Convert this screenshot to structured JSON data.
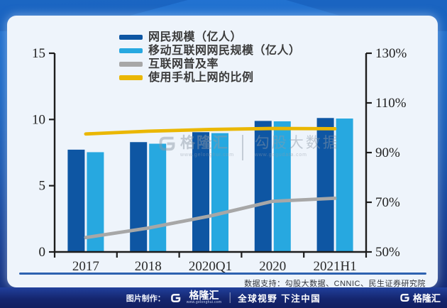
{
  "chart_data": {
    "type": "bar",
    "subtype": "combo-bar-line-dual-axis",
    "categories": [
      "2017",
      "2018",
      "2020Q1",
      "2020",
      "2021H1"
    ],
    "series": [
      {
        "name": "网民规模（亿人）",
        "kind": "bar",
        "axis": "left",
        "color": "#0e56a3",
        "values": [
          7.72,
          8.29,
          9.04,
          9.89,
          10.11
        ]
      },
      {
        "name": "移动互联网网民规模（亿人）",
        "kind": "bar",
        "axis": "left",
        "color": "#27a8e0",
        "values": [
          7.53,
          8.17,
          8.97,
          9.86,
          10.07
        ]
      },
      {
        "name": "互联网普及率",
        "kind": "line",
        "axis": "right",
        "color": "#a7a7a7",
        "values": [
          55.8,
          59.6,
          64.5,
          70.4,
          71.6
        ]
      },
      {
        "name": "使用手机上网的比例",
        "kind": "line",
        "axis": "right",
        "color": "#eab703",
        "values": [
          97.5,
          98.6,
          99.3,
          99.7,
          99.6
        ]
      }
    ],
    "left_axis": {
      "min": 0,
      "max": 15,
      "tick_values": [
        0,
        5,
        10,
        15
      ],
      "tick_labels": [
        "0",
        "5",
        "10",
        "15"
      ]
    },
    "right_axis": {
      "min": 50,
      "max": 130,
      "tick_values": [
        50,
        70,
        90,
        110,
        130
      ],
      "tick_labels": [
        "50%",
        "70%",
        "90%",
        "110%",
        "130%"
      ]
    },
    "legend_position": "top",
    "grid": false,
    "axis_color": "#1c1c1c"
  },
  "watermark": {
    "brand": "格隆汇",
    "brand_url": "www.gelonghui.com",
    "partner": "勾股大数据",
    "partner_url": "www.gogudata.com"
  },
  "source_note": "数据支持：勾股大数据、CNNIC、民生证券研究院",
  "footer": {
    "credit": "图片制作：",
    "logo": "格隆汇",
    "logo_url": "www.gelonghui.com",
    "slogan": "全球视野 下注中国",
    "right_logo": "格隆汇"
  }
}
